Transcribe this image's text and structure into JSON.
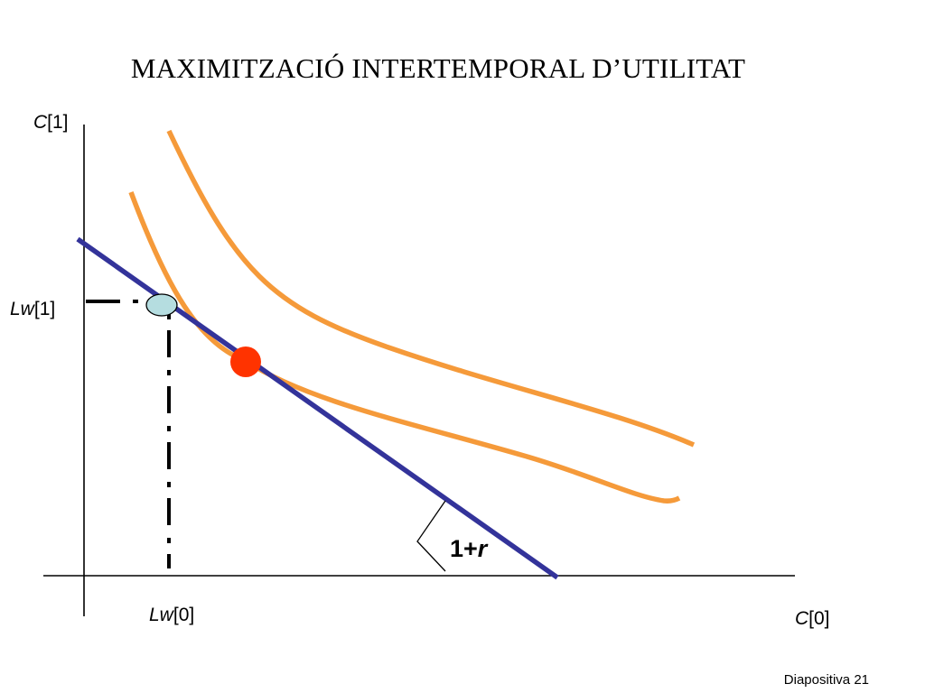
{
  "title": "MAXIMITZACIÓ INTERTEMPORAL D’UTILITAT",
  "footer": "Diapositiva 21",
  "axes": {
    "y_label": {
      "var": "C",
      "idx": "[1]"
    },
    "x_label": {
      "var": "C",
      "idx": "[0]"
    }
  },
  "endowment": {
    "y_label": {
      "var": "Lw",
      "idx": "[1]"
    },
    "x_label": {
      "var": "Lw",
      "idx": "[0]"
    }
  },
  "slope_label": {
    "prefix": "1+",
    "var": "r"
  },
  "colors": {
    "axis": "#000000",
    "budget_line": "#33339a",
    "indifference_curve": "#f59a3a",
    "endowment_point": "#b5dde0",
    "optimum_point": "#ff3300",
    "guide_lines": "#000000"
  }
}
